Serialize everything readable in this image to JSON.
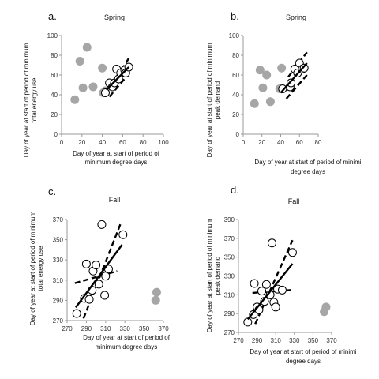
{
  "chart_data": [
    {
      "type": "scatter",
      "panel_label": "a.",
      "title": "Spring",
      "xlabel": [
        "Day of year at start of period of",
        "minimum degree days"
      ],
      "ylabel": [
        "Day of year at start of period of minimum",
        "total energy use"
      ],
      "xlim": [
        0,
        100
      ],
      "ylim": [
        0,
        100
      ],
      "xticks": [
        "0",
        "20",
        "40",
        "60",
        "80",
        "100"
      ],
      "yticks": [
        "0",
        "20",
        "40",
        "60",
        "80",
        "100"
      ],
      "series": [
        {
          "marker": "filled-gray",
          "points": [
            [
              13,
              35
            ],
            [
              18,
              74
            ],
            [
              21,
              47
            ],
            [
              25,
              88
            ],
            [
              31,
              48
            ],
            [
              40,
              67
            ],
            [
              41,
              42
            ],
            [
              43,
              44
            ]
          ]
        },
        {
          "marker": "open-circle",
          "points": [
            [
              43,
              42
            ],
            [
              47,
              52
            ],
            [
              50,
              48
            ],
            [
              52,
              52
            ],
            [
              54,
              66
            ],
            [
              56,
              56
            ],
            [
              58,
              62
            ],
            [
              62,
              65
            ],
            [
              63,
              62
            ],
            [
              66,
              68
            ]
          ]
        }
      ],
      "fit": {
        "x": [
          44,
          66
        ],
        "y": [
          45,
          68
        ]
      },
      "ci_upper": {
        "x": [
          50,
          66
        ],
        "y": [
          50,
          77
        ]
      },
      "ci_lower": {
        "x": [
          47,
          65
        ],
        "y": [
          38,
          60
        ]
      }
    },
    {
      "type": "scatter",
      "panel_label": "b.",
      "title": "Spring",
      "xlabel": [
        "Day of year at start of period of minimi",
        "degree days"
      ],
      "ylabel": [
        "Day of year at start of period of minimum",
        "peak demand"
      ],
      "xlim": [
        0,
        80
      ],
      "ylim": [
        0,
        100
      ],
      "xticks": [
        "0",
        "20",
        "40",
        "60",
        "80"
      ],
      "yticks": [
        "0",
        "20",
        "40",
        "60",
        "80",
        "100"
      ],
      "series": [
        {
          "marker": "filled-gray",
          "points": [
            [
              12,
              31
            ],
            [
              18,
              65
            ],
            [
              21,
              47
            ],
            [
              25,
              60
            ],
            [
              29,
              33
            ],
            [
              39,
              46
            ],
            [
              41,
              67
            ]
          ]
        },
        {
          "marker": "open-circle",
          "points": [
            [
              42,
              46
            ],
            [
              50,
              48
            ],
            [
              51,
              52
            ],
            [
              55,
              66
            ],
            [
              58,
              62
            ],
            [
              60,
              72
            ],
            [
              63,
              66
            ],
            [
              65,
              67
            ]
          ]
        }
      ],
      "fit": {
        "x": [
          40,
          68
        ],
        "y": [
          42,
          72
        ]
      },
      "ci_upper": {
        "x": [
          48,
          68
        ],
        "y": [
          58,
          83
        ]
      },
      "ci_lower": {
        "x": [
          46,
          68
        ],
        "y": [
          36,
          60
        ]
      }
    },
    {
      "type": "scatter",
      "panel_label": "c.",
      "title": "Fall",
      "xlabel": [
        "Day of year at start of period of",
        "minimum degree days"
      ],
      "ylabel": [
        "Day of year at start of period of minimum",
        "total energy use"
      ],
      "xlim": [
        270,
        370
      ],
      "ylim": [
        270,
        370
      ],
      "xticks": [
        "270",
        "290",
        "310",
        "330",
        "350",
        "370"
      ],
      "yticks": [
        "270",
        "290",
        "310",
        "330",
        "350",
        "370"
      ],
      "series": [
        {
          "marker": "filled-gray",
          "points": [
            [
              362,
              290
            ],
            [
              363,
              298
            ]
          ]
        },
        {
          "marker": "open-circle",
          "points": [
            [
              280,
              277
            ],
            [
              288,
              292
            ],
            [
              290,
              326
            ],
            [
              293,
              291
            ],
            [
              296,
              300
            ],
            [
              297,
              319
            ],
            [
              300,
              325
            ],
            [
              303,
              306
            ],
            [
              306,
              365
            ],
            [
              309,
              295
            ],
            [
              310,
              314
            ],
            [
              313,
              321
            ],
            [
              328,
              355
            ]
          ]
        }
      ],
      "fit": {
        "x": [
          279,
          327
        ],
        "y": [
          283,
          345
        ]
      },
      "ci_upper": {
        "x": [
          287,
          326
        ],
        "y": [
          272,
          367
        ]
      },
      "ci_lower": {
        "x": [
          278,
          322
        ],
        "y": [
          307,
          319
        ]
      }
    },
    {
      "type": "scatter",
      "panel_label": "d.",
      "title": "Fall",
      "xlabel": [
        "Day of year at start of period of minimi",
        "degree days"
      ],
      "ylabel": [
        "Day of year at start of period of minimum",
        "peak demand"
      ],
      "xlim": [
        270,
        370
      ],
      "ylim": [
        270,
        390
      ],
      "xticks": [
        "270",
        "290",
        "310",
        "330",
        "350",
        "370"
      ],
      "yticks": [
        "270",
        "290",
        "310",
        "330",
        "350",
        "370",
        "390"
      ],
      "series": [
        {
          "marker": "filled-gray",
          "points": [
            [
              362,
              292
            ],
            [
              364,
              297
            ]
          ]
        },
        {
          "marker": "open-circle",
          "points": [
            [
              280,
              281
            ],
            [
              286,
              289
            ],
            [
              287,
              322
            ],
            [
              290,
              297
            ],
            [
              292,
              294
            ],
            [
              295,
              314
            ],
            [
              298,
              303
            ],
            [
              300,
              321
            ],
            [
              304,
              310
            ],
            [
              306,
              365
            ],
            [
              308,
              302
            ],
            [
              310,
              297
            ],
            [
              312,
              316
            ],
            [
              317,
              315
            ],
            [
              328,
              355
            ]
          ]
        }
      ],
      "fit": {
        "x": [
          280,
          328
        ],
        "y": [
          284,
          343
        ]
      },
      "ci_upper": {
        "x": [
          288,
          328
        ],
        "y": [
          279,
          368
        ]
      },
      "ci_lower": {
        "x": [
          285,
          326
        ],
        "y": [
          312,
          315
        ]
      }
    }
  ]
}
